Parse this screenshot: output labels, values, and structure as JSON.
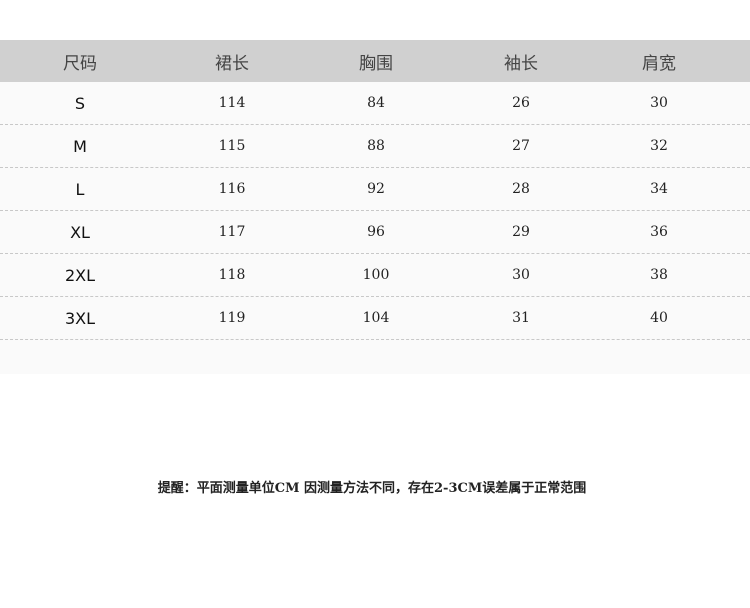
{
  "headers": [
    "尺码",
    "裙长",
    "胸围",
    "袖长",
    "肩宽"
  ],
  "rows": [
    [
      "S",
      "114",
      "84",
      "26",
      "30"
    ],
    [
      "M",
      "115",
      "88",
      "27",
      "32"
    ],
    [
      "L",
      "116",
      "92",
      "28",
      "34"
    ],
    [
      "XL",
      "117",
      "96",
      "29",
      "36"
    ],
    [
      "2XL",
      "118",
      "100",
      "30",
      "38"
    ],
    [
      "3XL",
      "119",
      "104",
      "31",
      "40"
    ]
  ],
  "note": "提醒：平面测量单位CM 因测量方法不同，存在2-3CM误差属于正常范围"
}
